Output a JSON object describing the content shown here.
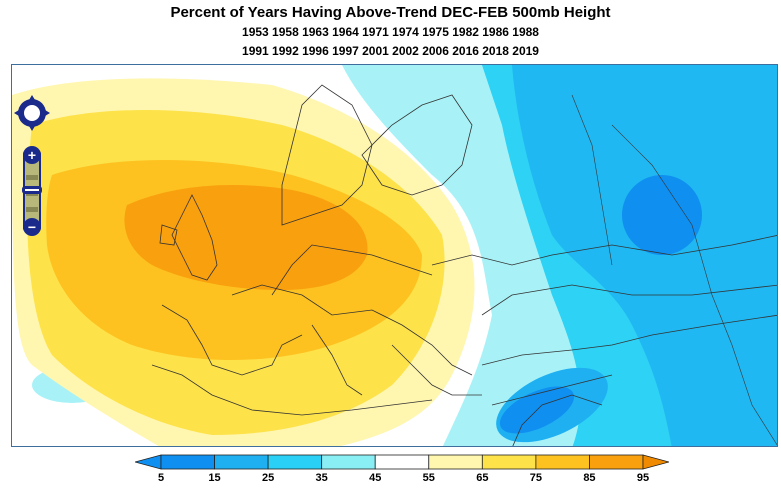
{
  "title": "Percent of Years Having Above-Trend DEC-FEB 500mb Height",
  "years_line1": "1953 1958 1963 1964 1971 1974 1975 1982 1986 1988",
  "years_line2": "1991 1992 1996 1997 2001 2002 2006 2016 2018 2019",
  "map_controls": {
    "pan": "pan-control",
    "zoom_in": "+",
    "zoom_out": "−"
  },
  "legend": {
    "ticks": [
      "5",
      "15",
      "25",
      "35",
      "45",
      "55",
      "65",
      "75",
      "85",
      "95"
    ],
    "colors": [
      "#0f8ff0",
      "#1fb0f2",
      "#2ad0f5",
      "#8aeff5",
      "#ffffff",
      "#fff6b0",
      "#fde24a",
      "#fdc21f",
      "#f9a00f",
      "#f08a00"
    ]
  }
}
